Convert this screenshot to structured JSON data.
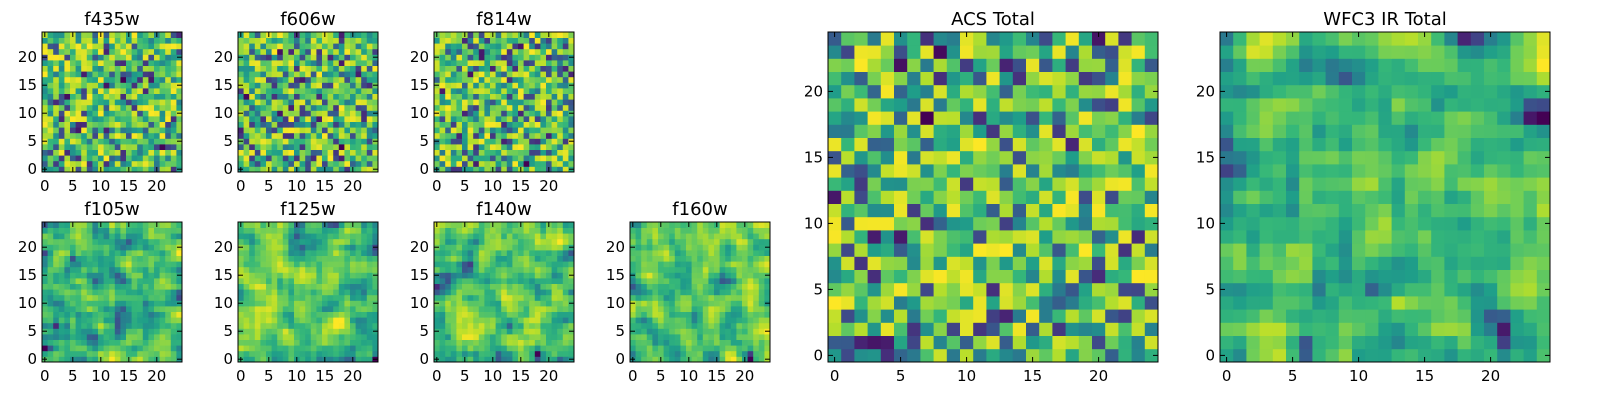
{
  "chart_data": [
    {
      "type": "heatmap",
      "title": "f435w",
      "xticks": [
        "0",
        "5",
        "10",
        "15",
        "20"
      ],
      "yticks": [
        "0",
        "5",
        "10",
        "15",
        "20"
      ],
      "xlim": [
        0,
        25
      ],
      "ylim": [
        0,
        25
      ],
      "grid": false,
      "colormap": "viridis",
      "seed": 11,
      "smooth": 0
    },
    {
      "type": "heatmap",
      "title": "f606w",
      "xticks": [
        "0",
        "5",
        "10",
        "15",
        "20"
      ],
      "yticks": [
        "0",
        "5",
        "10",
        "15",
        "20"
      ],
      "xlim": [
        0,
        25
      ],
      "ylim": [
        0,
        25
      ],
      "grid": false,
      "colormap": "viridis",
      "seed": 23,
      "smooth": 0
    },
    {
      "type": "heatmap",
      "title": "f814w",
      "xticks": [
        "0",
        "5",
        "10",
        "15",
        "20"
      ],
      "yticks": [
        "0",
        "5",
        "10",
        "15",
        "20"
      ],
      "xlim": [
        0,
        25
      ],
      "ylim": [
        0,
        25
      ],
      "grid": false,
      "colormap": "viridis",
      "seed": 37,
      "smooth": 0
    },
    {
      "type": "heatmap",
      "title": "f105w",
      "xticks": [
        "0",
        "5",
        "10",
        "15",
        "20"
      ],
      "yticks": [
        "0",
        "5",
        "10",
        "15",
        "20"
      ],
      "xlim": [
        0,
        25
      ],
      "ylim": [
        0,
        25
      ],
      "grid": false,
      "colormap": "viridis",
      "seed": 41,
      "smooth": 1
    },
    {
      "type": "heatmap",
      "title": "f125w",
      "xticks": [
        "0",
        "5",
        "10",
        "15",
        "20"
      ],
      "yticks": [
        "0",
        "5",
        "10",
        "15",
        "20"
      ],
      "xlim": [
        0,
        25
      ],
      "ylim": [
        0,
        25
      ],
      "grid": false,
      "colormap": "viridis",
      "seed": 53,
      "smooth": 1
    },
    {
      "type": "heatmap",
      "title": "f140w",
      "xticks": [
        "0",
        "5",
        "10",
        "15",
        "20"
      ],
      "yticks": [
        "0",
        "5",
        "10",
        "15",
        "20"
      ],
      "xlim": [
        0,
        25
      ],
      "ylim": [
        0,
        25
      ],
      "grid": false,
      "colormap": "viridis",
      "seed": 67,
      "smooth": 1
    },
    {
      "type": "heatmap",
      "title": "f160w",
      "xticks": [
        "0",
        "5",
        "10",
        "15",
        "20"
      ],
      "yticks": [
        "0",
        "5",
        "10",
        "15",
        "20"
      ],
      "xlim": [
        0,
        25
      ],
      "ylim": [
        0,
        25
      ],
      "grid": false,
      "colormap": "viridis",
      "seed": 79,
      "smooth": 1
    },
    {
      "type": "heatmap",
      "title": "ACS Total",
      "xticks": [
        "0",
        "5",
        "10",
        "15",
        "20"
      ],
      "yticks": [
        "0",
        "5",
        "10",
        "15",
        "20"
      ],
      "xlim": [
        0,
        25
      ],
      "ylim": [
        0,
        25
      ],
      "grid": false,
      "colormap": "viridis",
      "seed": 97,
      "smooth": 0
    },
    {
      "type": "heatmap",
      "title": "WFC3 IR Total",
      "xticks": [
        "0",
        "5",
        "10",
        "15",
        "20"
      ],
      "yticks": [
        "0",
        "5",
        "10",
        "15",
        "20"
      ],
      "xlim": [
        0,
        25
      ],
      "ylim": [
        0,
        25
      ],
      "grid": false,
      "colormap": "viridis",
      "seed": 113,
      "smooth": 1
    }
  ]
}
